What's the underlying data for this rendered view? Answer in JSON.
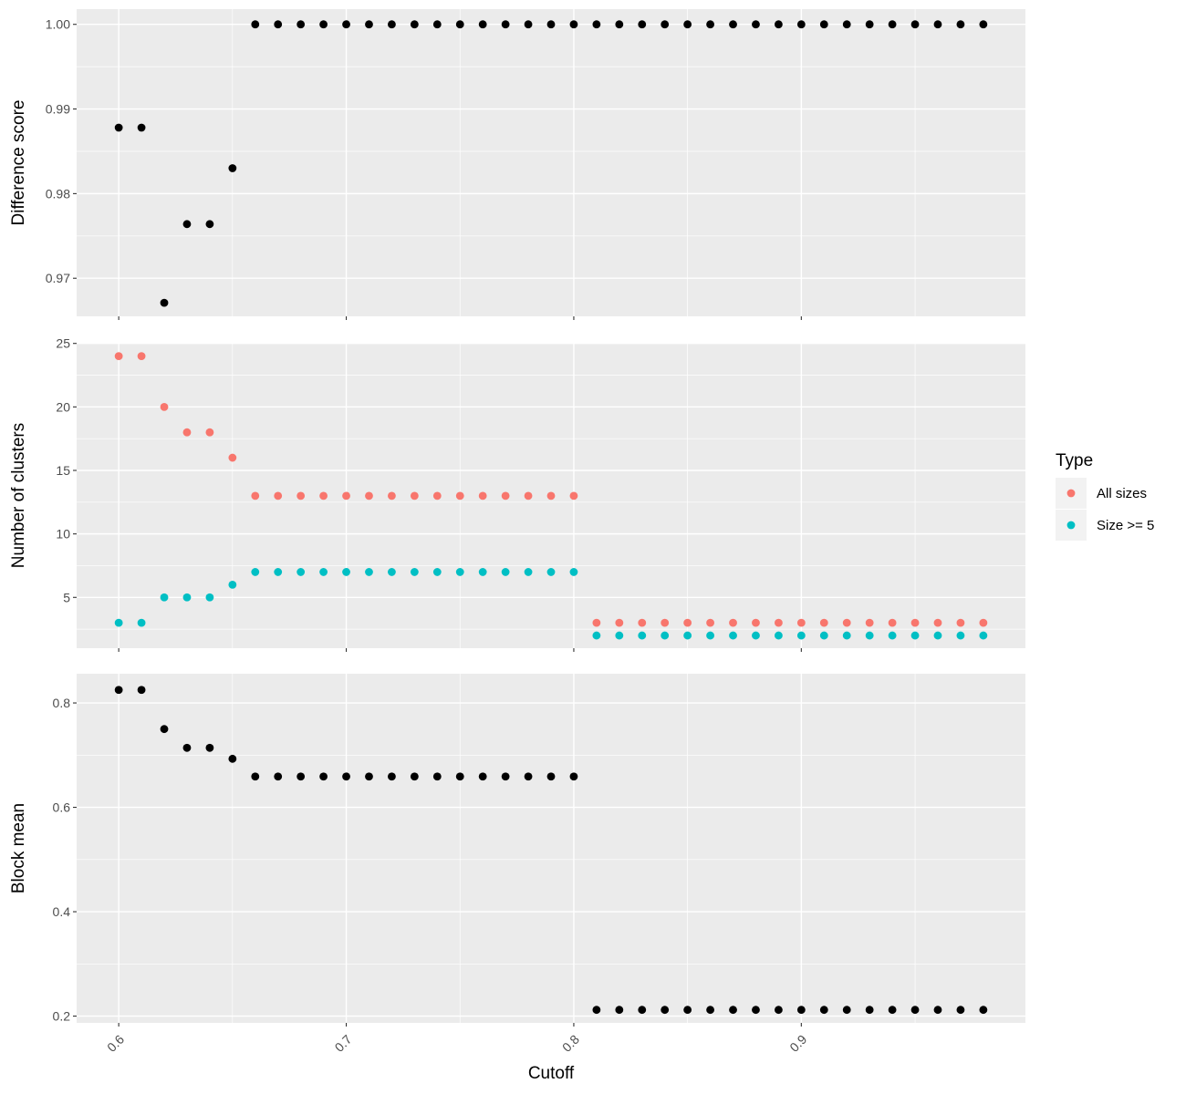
{
  "chart_data": [
    {
      "type": "scatter",
      "ylabel": "Difference score",
      "xlim": [
        0.5815,
        0.9985
      ],
      "ylim": [
        0.9655,
        1.0018
      ],
      "yticks": [
        0.97,
        0.98,
        0.99,
        1.0
      ],
      "ytick_labels": [
        "0.97",
        "0.98",
        "0.99",
        "1.00"
      ],
      "grid": true,
      "series": [
        {
          "color": "#000000",
          "points": [
            [
              0.6,
              0.9878
            ],
            [
              0.61,
              0.9878
            ],
            [
              0.62,
              0.9671
            ],
            [
              0.63,
              0.9764
            ],
            [
              0.64,
              0.9764
            ],
            [
              0.65,
              0.983
            ],
            [
              0.66,
              1.0
            ],
            [
              0.67,
              1.0
            ],
            [
              0.68,
              1.0
            ],
            [
              0.69,
              1.0
            ],
            [
              0.7,
              1.0
            ],
            [
              0.71,
              1.0
            ],
            [
              0.72,
              1.0
            ],
            [
              0.73,
              1.0
            ],
            [
              0.74,
              1.0
            ],
            [
              0.75,
              1.0
            ],
            [
              0.76,
              1.0
            ],
            [
              0.77,
              1.0
            ],
            [
              0.78,
              1.0
            ],
            [
              0.79,
              1.0
            ],
            [
              0.8,
              1.0
            ],
            [
              0.81,
              1.0
            ],
            [
              0.82,
              1.0
            ],
            [
              0.83,
              1.0
            ],
            [
              0.84,
              1.0
            ],
            [
              0.85,
              1.0
            ],
            [
              0.86,
              1.0
            ],
            [
              0.87,
              1.0
            ],
            [
              0.88,
              1.0
            ],
            [
              0.89,
              1.0
            ],
            [
              0.9,
              1.0
            ],
            [
              0.91,
              1.0
            ],
            [
              0.92,
              1.0
            ],
            [
              0.93,
              1.0
            ],
            [
              0.94,
              1.0
            ],
            [
              0.95,
              1.0
            ],
            [
              0.96,
              1.0
            ],
            [
              0.97,
              1.0
            ],
            [
              0.98,
              1.0
            ]
          ]
        }
      ]
    },
    {
      "type": "scatter",
      "ylabel": "Number of clusters",
      "xlim": [
        0.5815,
        0.9985
      ],
      "ylim": [
        1.0,
        25.05
      ],
      "yticks": [
        5,
        10,
        15,
        20,
        25
      ],
      "ytick_labels": [
        "5",
        "10",
        "15",
        "20",
        "25"
      ],
      "grid": true,
      "legend": {
        "title": "Type",
        "placement": "right",
        "entries": [
          {
            "label": "All sizes",
            "color": "#F8766D"
          },
          {
            "label": "Size >= 5",
            "color": "#00BFC4"
          }
        ]
      },
      "series": [
        {
          "name": "All sizes",
          "color": "#F8766D",
          "points": [
            [
              0.6,
              24
            ],
            [
              0.61,
              24
            ],
            [
              0.62,
              20
            ],
            [
              0.63,
              18
            ],
            [
              0.64,
              18
            ],
            [
              0.65,
              16
            ],
            [
              0.66,
              13
            ],
            [
              0.67,
              13
            ],
            [
              0.68,
              13
            ],
            [
              0.69,
              13
            ],
            [
              0.7,
              13
            ],
            [
              0.71,
              13
            ],
            [
              0.72,
              13
            ],
            [
              0.73,
              13
            ],
            [
              0.74,
              13
            ],
            [
              0.75,
              13
            ],
            [
              0.76,
              13
            ],
            [
              0.77,
              13
            ],
            [
              0.78,
              13
            ],
            [
              0.79,
              13
            ],
            [
              0.8,
              13
            ],
            [
              0.81,
              3
            ],
            [
              0.82,
              3
            ],
            [
              0.83,
              3
            ],
            [
              0.84,
              3
            ],
            [
              0.85,
              3
            ],
            [
              0.86,
              3
            ],
            [
              0.87,
              3
            ],
            [
              0.88,
              3
            ],
            [
              0.89,
              3
            ],
            [
              0.9,
              3
            ],
            [
              0.91,
              3
            ],
            [
              0.92,
              3
            ],
            [
              0.93,
              3
            ],
            [
              0.94,
              3
            ],
            [
              0.95,
              3
            ],
            [
              0.96,
              3
            ],
            [
              0.97,
              3
            ],
            [
              0.98,
              3
            ]
          ]
        },
        {
          "name": "Size >= 5",
          "color": "#00BFC4",
          "points": [
            [
              0.6,
              3
            ],
            [
              0.61,
              3
            ],
            [
              0.62,
              5
            ],
            [
              0.63,
              5
            ],
            [
              0.64,
              5
            ],
            [
              0.65,
              6
            ],
            [
              0.66,
              7
            ],
            [
              0.67,
              7
            ],
            [
              0.68,
              7
            ],
            [
              0.69,
              7
            ],
            [
              0.7,
              7
            ],
            [
              0.71,
              7
            ],
            [
              0.72,
              7
            ],
            [
              0.73,
              7
            ],
            [
              0.74,
              7
            ],
            [
              0.75,
              7
            ],
            [
              0.76,
              7
            ],
            [
              0.77,
              7
            ],
            [
              0.78,
              7
            ],
            [
              0.79,
              7
            ],
            [
              0.8,
              7
            ],
            [
              0.81,
              2
            ],
            [
              0.82,
              2
            ],
            [
              0.83,
              2
            ],
            [
              0.84,
              2
            ],
            [
              0.85,
              2
            ],
            [
              0.86,
              2
            ],
            [
              0.87,
              2
            ],
            [
              0.88,
              2
            ],
            [
              0.89,
              2
            ],
            [
              0.9,
              2
            ],
            [
              0.91,
              2
            ],
            [
              0.92,
              2
            ],
            [
              0.93,
              2
            ],
            [
              0.94,
              2
            ],
            [
              0.95,
              2
            ],
            [
              0.96,
              2
            ],
            [
              0.97,
              2
            ],
            [
              0.98,
              2
            ]
          ]
        }
      ]
    },
    {
      "type": "scatter",
      "xlabel": "Cutoff",
      "ylabel": "Block mean",
      "xlim": [
        0.5815,
        0.9985
      ],
      "ylim": [
        0.187,
        0.856
      ],
      "yticks": [
        0.2,
        0.4,
        0.6,
        0.8
      ],
      "ytick_labels": [
        "0.2",
        "0.4",
        "0.6",
        "0.8"
      ],
      "xticks": [
        0.6,
        0.7,
        0.8,
        0.9
      ],
      "xtick_labels": [
        "0.6",
        "0.7",
        "0.8",
        "0.9"
      ],
      "grid": true,
      "series": [
        {
          "color": "#000000",
          "points": [
            [
              0.6,
              0.825
            ],
            [
              0.61,
              0.825
            ],
            [
              0.62,
              0.75
            ],
            [
              0.63,
              0.714
            ],
            [
              0.64,
              0.714
            ],
            [
              0.65,
              0.693
            ],
            [
              0.66,
              0.659
            ],
            [
              0.67,
              0.659
            ],
            [
              0.68,
              0.659
            ],
            [
              0.69,
              0.659
            ],
            [
              0.7,
              0.659
            ],
            [
              0.71,
              0.659
            ],
            [
              0.72,
              0.659
            ],
            [
              0.73,
              0.659
            ],
            [
              0.74,
              0.659
            ],
            [
              0.75,
              0.659
            ],
            [
              0.76,
              0.659
            ],
            [
              0.77,
              0.659
            ],
            [
              0.78,
              0.659
            ],
            [
              0.79,
              0.659
            ],
            [
              0.8,
              0.659
            ],
            [
              0.81,
              0.212
            ],
            [
              0.82,
              0.212
            ],
            [
              0.83,
              0.212
            ],
            [
              0.84,
              0.212
            ],
            [
              0.85,
              0.212
            ],
            [
              0.86,
              0.212
            ],
            [
              0.87,
              0.212
            ],
            [
              0.88,
              0.212
            ],
            [
              0.89,
              0.212
            ],
            [
              0.9,
              0.212
            ],
            [
              0.91,
              0.212
            ],
            [
              0.92,
              0.212
            ],
            [
              0.93,
              0.212
            ],
            [
              0.94,
              0.212
            ],
            [
              0.95,
              0.212
            ],
            [
              0.96,
              0.212
            ],
            [
              0.97,
              0.212
            ],
            [
              0.98,
              0.212
            ]
          ]
        }
      ]
    }
  ]
}
